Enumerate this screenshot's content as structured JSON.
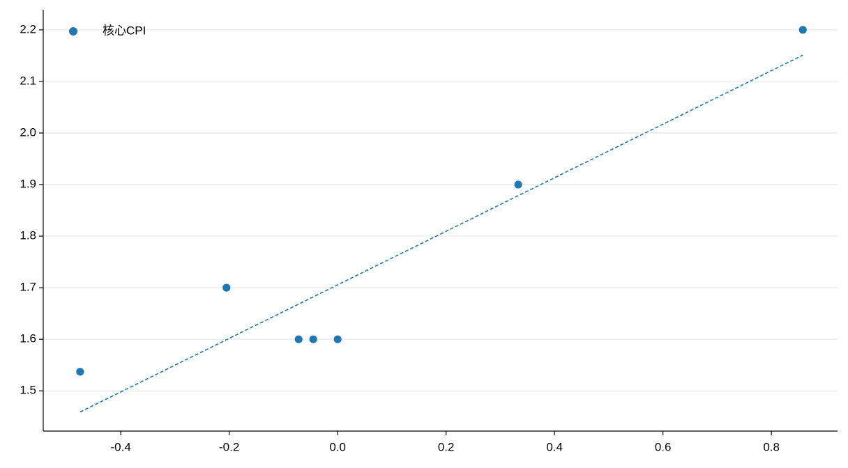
{
  "chart_data": {
    "type": "scatter",
    "series": [
      {
        "name": "核心CPI",
        "color": "#1f77b4",
        "x": [
          -0.475,
          -0.205,
          -0.072,
          -0.045,
          0.0,
          0.333,
          0.858
        ],
        "values": [
          1.537,
          1.7,
          1.6,
          1.6,
          1.6,
          1.9,
          2.2
        ]
      }
    ],
    "trendline": {
      "x": [
        -0.475,
        0.858
      ],
      "values": [
        1.459,
        2.151
      ],
      "color": "#1f77b4",
      "style": "dashed"
    },
    "xlim": [
      -0.543,
      0.922
    ],
    "ylim": [
      1.422,
      2.239
    ],
    "xticks": [
      -0.4,
      -0.2,
      {
        "value": 0,
        "label": "0.0"
      },
      0.2,
      0.4,
      0.6,
      0.8
    ],
    "yticks": [
      1.5,
      1.6,
      1.7,
      1.8,
      1.9,
      {
        "value": 2,
        "label": "2.0"
      },
      2.1,
      2.2
    ],
    "grid": "y",
    "legend": "upper-left"
  }
}
